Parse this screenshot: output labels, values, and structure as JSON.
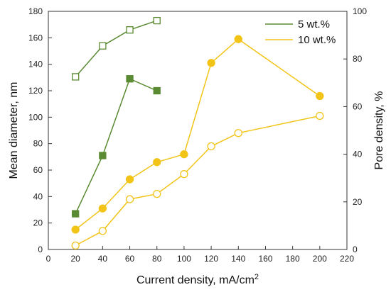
{
  "chart_data": {
    "type": "scatter",
    "xlabel": "Current density, mA/cm",
    "xlabel_superscript": "2",
    "ylabel_left": "Mean diameter, nm",
    "ylabel_right": "Pore density, %",
    "xlim": [
      0,
      220
    ],
    "x_ticks": [
      0,
      20,
      40,
      60,
      80,
      100,
      120,
      140,
      160,
      180,
      200,
      220
    ],
    "ylim_left": [
      0,
      180
    ],
    "y_ticks_left": [
      0,
      20,
      40,
      60,
      80,
      100,
      120,
      140,
      160,
      180
    ],
    "ylim_right": [
      0,
      100
    ],
    "y_ticks_right": [
      0,
      20,
      40,
      60,
      80,
      100
    ],
    "grid": false,
    "legend_position": "top-right",
    "legend": [
      {
        "label": "5 wt.%",
        "color": "#5a8a32"
      },
      {
        "label": "10 wt.%",
        "color": "#f2c418"
      }
    ],
    "series": [
      {
        "name": "5 wt.%",
        "axis": "left",
        "marker": "square-filled",
        "color": "#5a8a32",
        "x": [
          20,
          40,
          60,
          80
        ],
        "y": [
          27,
          71,
          129,
          120
        ]
      },
      {
        "name": "5 wt.%",
        "axis": "right",
        "marker": "square-open",
        "color": "#5a8a32",
        "x": [
          20,
          40,
          60,
          80
        ],
        "y": [
          72.5,
          85.5,
          92.2,
          96.1
        ]
      },
      {
        "name": "10 wt.%",
        "axis": "left",
        "marker": "circle-filled",
        "color": "#f2c418",
        "x": [
          20,
          40,
          60,
          80,
          100,
          120,
          140,
          200
        ],
        "y": [
          15,
          31,
          53,
          66,
          72,
          141,
          159,
          116
        ]
      },
      {
        "name": "10 wt.%",
        "axis": "left",
        "marker": "circle-open",
        "color": "#f2c418",
        "x": [
          20,
          40,
          60,
          80,
          100,
          120,
          140,
          200
        ],
        "y": [
          3,
          14,
          38,
          42,
          57,
          78,
          88,
          101
        ]
      }
    ]
  }
}
